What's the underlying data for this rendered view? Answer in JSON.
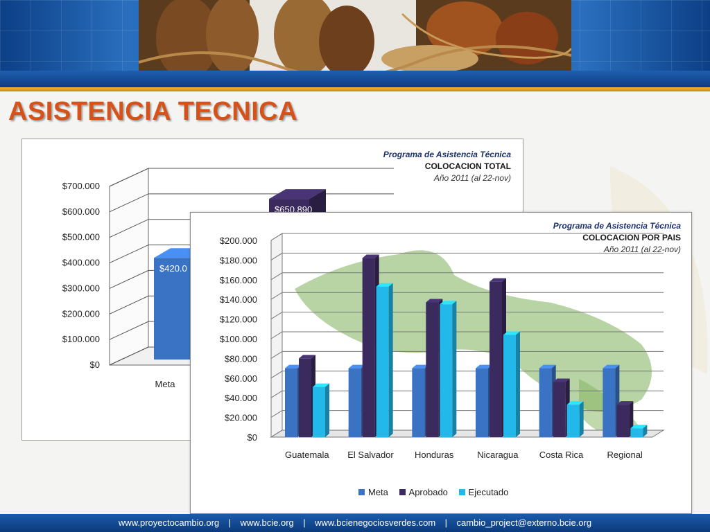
{
  "page": {
    "title": "ASISTENCIA TECNICA",
    "footer_links": [
      "www.proyectocambio.org",
      "www.bcie.org",
      "www.bcienegociosverdes.com",
      "cambio_project@externo.bcie.org"
    ],
    "footer_separator": "|"
  },
  "colors": {
    "title": "#d5521a",
    "banner": "#0f4fa0",
    "gold_line": "#e6a020",
    "meta": "#3a73c4",
    "aprobado": "#3a2a5e",
    "ejecutado": "#22b8ea"
  },
  "icons": [
    "cacao-banner-photo",
    "leaf-decoration"
  ],
  "charts": {
    "total": {
      "caption": [
        "Programa de Asistencia Técnica",
        "COLOCACION TOTAL",
        "Año 2011 (al 22-nov)"
      ],
      "y_ticks": [
        "$0",
        "$100.000",
        "$200.000",
        "$300.000",
        "$400.000",
        "$500.000",
        "$600.000",
        "$700.000"
      ],
      "visible_categories": [
        "Meta"
      ],
      "data_labels": [
        "$420.0",
        "$650.890"
      ]
    },
    "pais": {
      "caption": [
        "Programa de Asistencia Técnica",
        "COLOCACION POR PAIS",
        "Año 2011 (al 22-nov)"
      ],
      "y_ticks": [
        "$0",
        "$20.000",
        "$40.000",
        "$60.000",
        "$80.000",
        "$100.000",
        "$120.000",
        "$140.000",
        "$160.000",
        "$180.000",
        "$200.000"
      ],
      "legend": [
        "Meta",
        "Aprobado",
        "Ejecutado"
      ]
    }
  },
  "chart_data": [
    {
      "type": "bar",
      "title": "Programa de Asistencia Técnica COLOCACION TOTAL",
      "subtitle": "Año 2011 (al 22-nov)",
      "categories": [
        "Meta",
        ""
      ],
      "values": [
        420000,
        650890
      ],
      "ylim": [
        0,
        700000
      ],
      "grid": true,
      "three_d": true
    },
    {
      "type": "bar",
      "title": "Programa de Asistencia Técnica COLOCACION POR PAIS",
      "subtitle": "Año 2011 (al 22-nov)",
      "categories": [
        "Guatemala",
        "El Salvador",
        "Honduras",
        "Nicaragua",
        "Costa Rica",
        "Regional"
      ],
      "series": [
        {
          "name": "Meta",
          "values": [
            70000,
            70000,
            70000,
            70000,
            70000,
            70000
          ]
        },
        {
          "name": "Aprobado",
          "values": [
            80000,
            182000,
            137000,
            158000,
            56000,
            33000
          ]
        },
        {
          "name": "Ejecutado",
          "values": [
            51000,
            153000,
            135000,
            104000,
            33000,
            9000
          ]
        }
      ],
      "ylim": [
        0,
        200000
      ],
      "grid": true,
      "legend_position": "bottom",
      "three_d": true
    }
  ]
}
